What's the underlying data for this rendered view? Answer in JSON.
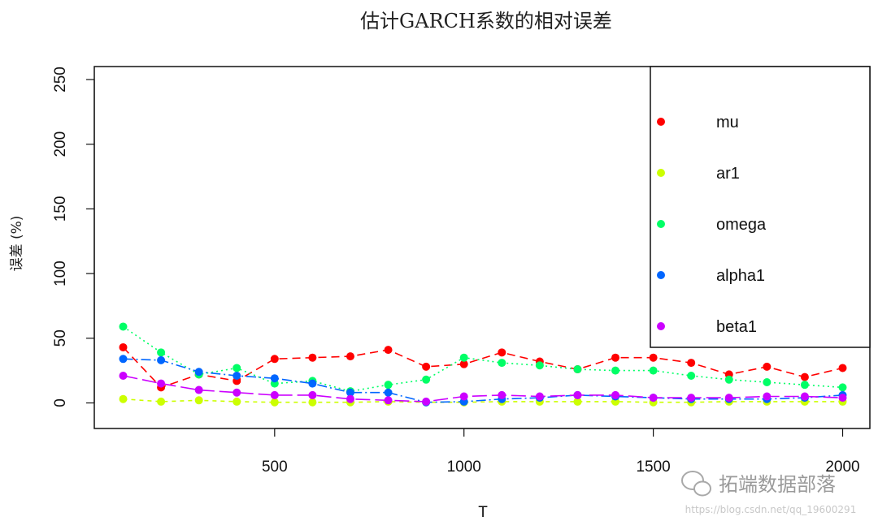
{
  "chart_data": {
    "type": "line",
    "title": "估计GARCH系数的相对误差",
    "xlabel": "T",
    "ylabel": "误差 (%)",
    "xlim": [
      100,
      2000
    ],
    "ylim": [
      0,
      250
    ],
    "xticks": [
      500,
      1000,
      1500,
      2000
    ],
    "yticks": [
      0,
      50,
      100,
      150,
      200,
      250
    ],
    "x": [
      100,
      200,
      300,
      400,
      500,
      600,
      700,
      800,
      900,
      1000,
      1100,
      1200,
      1300,
      1400,
      1500,
      1600,
      1700,
      1800,
      1900,
      2000
    ],
    "legend_position": "top-right",
    "series": [
      {
        "name": "mu",
        "color": "#FF0000",
        "dash": "10,6",
        "values": [
          43,
          12,
          22,
          17,
          34,
          35,
          36,
          41,
          28,
          30,
          39,
          32,
          26,
          35,
          35,
          31,
          22,
          28,
          20,
          27
        ]
      },
      {
        "name": "ar1",
        "color": "#CCFF00",
        "dash": "5,5",
        "values": [
          3,
          1,
          2,
          1,
          0.5,
          0.5,
          0.5,
          1,
          0.5,
          0.5,
          1,
          1,
          1,
          1,
          0.5,
          0.5,
          1,
          1,
          1,
          1
        ]
      },
      {
        "name": "omega",
        "color": "#00FF66",
        "dash": "2,4",
        "values": [
          59,
          39,
          22,
          27,
          15,
          17,
          9,
          14,
          18,
          35,
          31,
          29,
          26,
          25,
          25,
          21,
          18,
          16,
          14,
          12
        ]
      },
      {
        "name": "alpha1",
        "color": "#0066FF",
        "dash": "12,4,2,4",
        "values": [
          34,
          33,
          24,
          21,
          19,
          15,
          8,
          8,
          0.5,
          1,
          3,
          4,
          6,
          5,
          4,
          3,
          3,
          3,
          4,
          6
        ]
      },
      {
        "name": "beta1",
        "color": "#CC00FF",
        "dash": "18,6",
        "values": [
          21,
          15,
          10,
          8,
          6,
          6,
          3,
          2,
          1,
          5,
          6,
          5,
          6,
          6,
          4,
          4,
          4,
          5,
          5,
          4
        ]
      }
    ]
  },
  "watermark": {
    "text": "拓端数据部落",
    "url": "https://blog.csdn.net/qq_19600291"
  }
}
